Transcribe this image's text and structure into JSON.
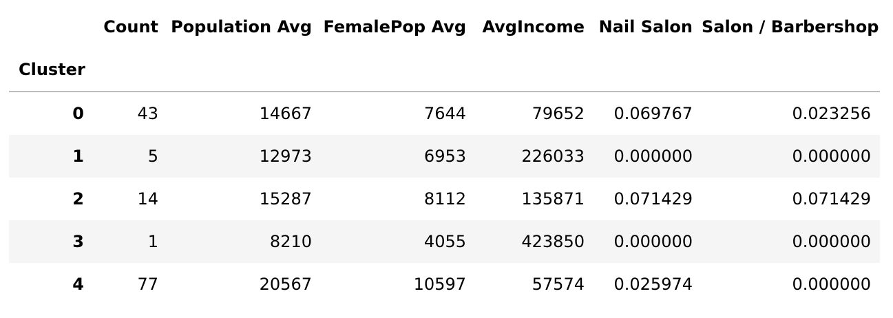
{
  "table": {
    "index_name": "Cluster",
    "columns": [
      "Count",
      "Population Avg",
      "FemalePop Avg",
      "AvgIncome",
      "Nail Salon",
      "Salon / Barbershop"
    ],
    "rows": [
      {
        "index": "0",
        "values": [
          "43",
          "14667",
          "7644",
          "79652",
          "0.069767",
          "0.023256"
        ]
      },
      {
        "index": "1",
        "values": [
          "5",
          "12973",
          "6953",
          "226033",
          "0.000000",
          "0.000000"
        ]
      },
      {
        "index": "2",
        "values": [
          "14",
          "15287",
          "8112",
          "135871",
          "0.071429",
          "0.071429"
        ]
      },
      {
        "index": "3",
        "values": [
          "1",
          "8210",
          "4055",
          "423850",
          "0.000000",
          "0.000000"
        ]
      },
      {
        "index": "4",
        "values": [
          "77",
          "20567",
          "10597",
          "57574",
          "0.025974",
          "0.000000"
        ]
      }
    ]
  },
  "colors": {
    "stripe": "#f5f5f5",
    "header_rule": "#bdbdbd",
    "text": "#000000"
  }
}
